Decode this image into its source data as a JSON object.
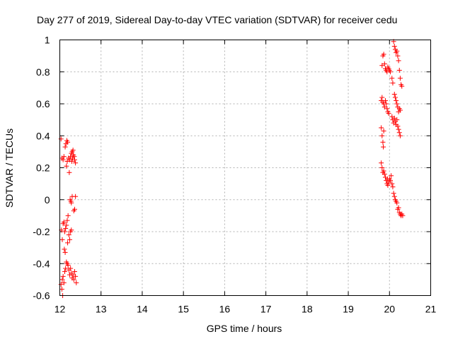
{
  "chart_data": {
    "type": "scatter",
    "title": "Day 277 of 2019, Sidereal Day-to-day VTEC variation (SDTVAR) for receiver cedu",
    "xlabel": "GPS time / hours",
    "ylabel": "SDTVAR / TECUs",
    "xlim": [
      12,
      21
    ],
    "ylim": [
      -0.6,
      1
    ],
    "x_ticks": [
      12,
      13,
      14,
      15,
      16,
      17,
      18,
      19,
      20,
      21
    ],
    "y_ticks": [
      -0.6,
      -0.4,
      -0.2,
      0,
      0.2,
      0.4,
      0.6,
      0.8,
      1
    ],
    "x_tick_labels": [
      "12",
      "13",
      "14",
      "15",
      "16",
      "17",
      "18",
      "19",
      "20",
      "21"
    ],
    "y_tick_labels": [
      "-0.6",
      "-0.4",
      "-0.2",
      "0",
      "0.2",
      "0.4",
      "0.6",
      "0.8",
      "1"
    ],
    "grid": true,
    "marker": "plus",
    "series": [
      {
        "name": "SDTVAR",
        "color": "#ff0000",
        "points": [
          [
            12.03,
            0.38
          ],
          [
            12.05,
            0.26
          ],
          [
            12.08,
            0.25
          ],
          [
            12.1,
            0.27
          ],
          [
            12.13,
            0.33
          ],
          [
            12.15,
            0.35
          ],
          [
            12.17,
            0.37
          ],
          [
            12.19,
            0.36
          ],
          [
            12.16,
            0.21
          ],
          [
            12.18,
            0.24
          ],
          [
            12.21,
            0.26
          ],
          [
            12.23,
            0.17
          ],
          [
            12.24,
            0.25
          ],
          [
            12.26,
            0.27
          ],
          [
            12.28,
            0.29
          ],
          [
            12.3,
            0.3
          ],
          [
            12.32,
            0.31
          ],
          [
            12.33,
            0.28
          ],
          [
            12.35,
            0.27
          ],
          [
            12.36,
            0.25
          ],
          [
            12.38,
            0.23
          ],
          [
            12.29,
            0.24
          ],
          [
            12.31,
            0.26
          ],
          [
            12.25,
            0.0
          ],
          [
            12.27,
            -0.01
          ],
          [
            12.28,
            -0.02
          ],
          [
            12.3,
            0.02
          ],
          [
            12.34,
            -0.07
          ],
          [
            12.36,
            -0.06
          ],
          [
            12.38,
            0.02
          ],
          [
            12.04,
            -0.19
          ],
          [
            12.06,
            -0.25
          ],
          [
            12.08,
            -0.15
          ],
          [
            12.1,
            -0.14
          ],
          [
            12.12,
            -0.2
          ],
          [
            12.14,
            -0.18
          ],
          [
            12.16,
            -0.16
          ],
          [
            12.18,
            -0.13
          ],
          [
            12.2,
            -0.1
          ],
          [
            12.22,
            -0.22
          ],
          [
            12.24,
            -0.25
          ],
          [
            12.26,
            -0.2
          ],
          [
            12.28,
            -0.19
          ],
          [
            12.11,
            -0.31
          ],
          [
            12.13,
            -0.33
          ],
          [
            12.19,
            -0.27
          ],
          [
            12.03,
            -0.53
          ],
          [
            12.05,
            -0.56
          ],
          [
            12.06,
            -0.5
          ],
          [
            12.08,
            -0.48
          ],
          [
            12.1,
            -0.52
          ],
          [
            12.12,
            -0.45
          ],
          [
            12.14,
            -0.43
          ],
          [
            12.16,
            -0.39
          ],
          [
            12.18,
            -0.4
          ],
          [
            12.2,
            -0.41
          ],
          [
            12.22,
            -0.44
          ],
          [
            12.24,
            -0.47
          ],
          [
            12.26,
            -0.43
          ],
          [
            12.28,
            -0.46
          ],
          [
            12.3,
            -0.49
          ],
          [
            12.32,
            -0.47
          ],
          [
            12.34,
            -0.5
          ],
          [
            12.36,
            -0.45
          ],
          [
            12.38,
            -0.48
          ],
          [
            12.4,
            -0.52
          ],
          [
            12.07,
            -0.6
          ],
          [
            19.82,
            0.84
          ],
          [
            19.84,
            0.9
          ],
          [
            19.86,
            0.91
          ],
          [
            19.88,
            0.85
          ],
          [
            19.9,
            0.82
          ],
          [
            19.92,
            0.81
          ],
          [
            19.94,
            0.8
          ],
          [
            19.96,
            0.83
          ],
          [
            19.98,
            0.82
          ],
          [
            20.0,
            0.81
          ],
          [
            20.02,
            0.8
          ],
          [
            20.1,
            0.99
          ],
          [
            20.12,
            0.96
          ],
          [
            20.14,
            0.94
          ],
          [
            20.16,
            0.92
          ],
          [
            20.18,
            0.93
          ],
          [
            20.2,
            0.9
          ],
          [
            20.22,
            0.87
          ],
          [
            20.24,
            0.81
          ],
          [
            20.26,
            0.76
          ],
          [
            20.28,
            0.72
          ],
          [
            20.3,
            0.71
          ],
          [
            20.06,
            0.76
          ],
          [
            20.08,
            0.73
          ],
          [
            19.8,
            0.62
          ],
          [
            19.82,
            0.64
          ],
          [
            19.84,
            0.61
          ],
          [
            19.86,
            0.6
          ],
          [
            19.88,
            0.58
          ],
          [
            19.9,
            0.62
          ],
          [
            19.92,
            0.6
          ],
          [
            19.94,
            0.57
          ],
          [
            19.96,
            0.55
          ],
          [
            19.98,
            0.54
          ],
          [
            20.12,
            0.66
          ],
          [
            20.14,
            0.64
          ],
          [
            20.16,
            0.62
          ],
          [
            20.18,
            0.6
          ],
          [
            20.2,
            0.58
          ],
          [
            20.22,
            0.55
          ],
          [
            20.24,
            0.57
          ],
          [
            20.26,
            0.56
          ],
          [
            20.06,
            0.52
          ],
          [
            20.08,
            0.5
          ],
          [
            20.1,
            0.48
          ],
          [
            20.12,
            0.51
          ],
          [
            20.14,
            0.49
          ],
          [
            20.16,
            0.47
          ],
          [
            20.18,
            0.5
          ],
          [
            20.2,
            0.46
          ],
          [
            20.22,
            0.44
          ],
          [
            20.24,
            0.42
          ],
          [
            20.26,
            0.4
          ],
          [
            19.8,
            0.45
          ],
          [
            19.82,
            0.4
          ],
          [
            19.84,
            0.36
          ],
          [
            19.86,
            0.43
          ],
          [
            19.85,
            0.33
          ],
          [
            19.8,
            0.23
          ],
          [
            19.82,
            0.2
          ],
          [
            19.84,
            0.17
          ],
          [
            19.86,
            0.18
          ],
          [
            19.88,
            0.16
          ],
          [
            19.9,
            0.14
          ],
          [
            19.92,
            0.12
          ],
          [
            19.94,
            0.1
          ],
          [
            19.96,
            0.09
          ],
          [
            19.98,
            0.11
          ],
          [
            20.0,
            0.13
          ],
          [
            20.02,
            0.12
          ],
          [
            20.04,
            0.15
          ],
          [
            20.06,
            0.1
          ],
          [
            20.08,
            0.08
          ],
          [
            19.95,
            0.13
          ],
          [
            20.1,
            0.04
          ],
          [
            20.12,
            0.02
          ],
          [
            20.14,
            0.0
          ],
          [
            20.16,
            -0.01
          ],
          [
            20.18,
            -0.02
          ],
          [
            20.2,
            -0.06
          ],
          [
            20.22,
            -0.05
          ],
          [
            20.24,
            -0.08
          ],
          [
            20.26,
            -0.09
          ],
          [
            20.28,
            -0.1
          ],
          [
            20.3,
            -0.09
          ],
          [
            20.32,
            -0.1
          ]
        ]
      }
    ]
  }
}
